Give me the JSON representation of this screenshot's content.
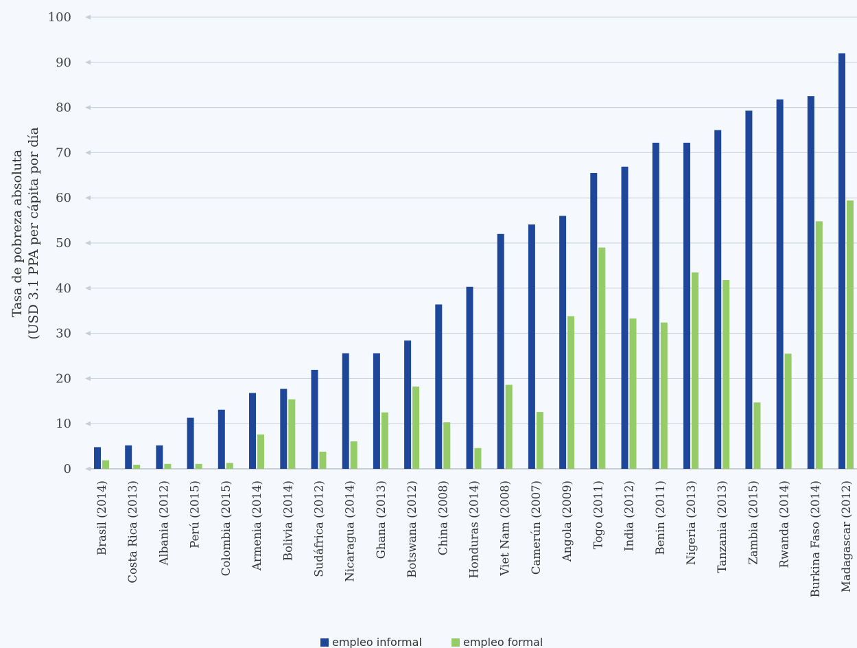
{
  "chart_data": {
    "type": "bar",
    "ylabel_line1": "Tasa de pobreza absoluta",
    "ylabel_line2": "(USD 3.1 PPA per cápita por día",
    "ylim": [
      0,
      100
    ],
    "yticks": [
      "0",
      "10",
      "20",
      "30",
      "40",
      "50",
      "60",
      "70",
      "80",
      "90",
      "100"
    ],
    "grid": true,
    "legend_position": "bottom",
    "categories": [
      "Brasil (2014)",
      "Costa Rica (2013)",
      "Albania (2012)",
      "Perú (2015)",
      "Colombia (2015)",
      "Armenia (2014)",
      "Bolivia (2014)",
      "Sudáfrica (2012)",
      "Nicaragua (2014)",
      "Ghana (2013)",
      "Botswana (2012)",
      "China (2008)",
      "Honduras (2014)",
      "Viet Nam (2008)",
      "Camerún (2007)",
      "Angola (2009)",
      "Togo (2011)",
      "India (2012)",
      "Benin (2011)",
      "Nigeria (2013)",
      "Tanzania (2013)",
      "Zambia (2015)",
      "Rwanda (2014)",
      "Burkina Faso (2014)",
      "Madagascar (2012)"
    ],
    "series": [
      {
        "name": "empleo informal",
        "color": "#1f4799",
        "values": [
          4.8,
          5.2,
          5.2,
          11.3,
          13.1,
          16.8,
          17.7,
          21.9,
          25.6,
          25.6,
          28.4,
          36.4,
          40.3,
          52.0,
          54.1,
          56.0,
          65.5,
          66.9,
          72.2,
          72.2,
          75.0,
          79.3,
          81.8,
          82.5,
          92.0
        ]
      },
      {
        "name": "empleo formal",
        "color": "#96cc68",
        "values": [
          1.9,
          0.9,
          1.1,
          1.1,
          1.3,
          7.6,
          15.4,
          3.8,
          6.1,
          12.5,
          18.2,
          10.3,
          4.6,
          18.6,
          12.6,
          33.8,
          49.0,
          33.3,
          32.4,
          43.5,
          41.8,
          14.7,
          25.5,
          54.8,
          59.4
        ]
      }
    ]
  }
}
